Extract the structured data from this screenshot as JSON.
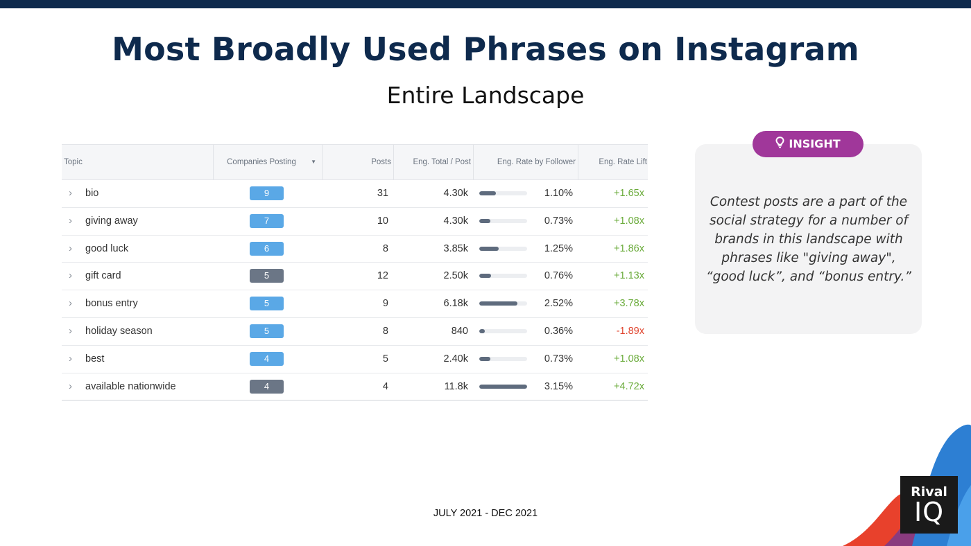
{
  "header": {
    "title": "Most Broadly Used Phrases on Instagram",
    "subtitle": "Entire Landscape"
  },
  "table": {
    "columns": {
      "topic": "Topic",
      "companies": "Companies Posting",
      "posts": "Posts",
      "eng_total": "Eng. Total / Post",
      "eng_rate": "Eng. Rate by Follower",
      "lift": "Eng. Rate Lift"
    },
    "rows": [
      {
        "topic": "bio",
        "companies": "9",
        "badge_color": "#5aa8e6",
        "posts": "31",
        "eng_total": "4.30k",
        "rate": "1.10%",
        "rate_fill": 0.35,
        "lift": "+1.65x",
        "lift_color": "#6aab3a"
      },
      {
        "topic": "giving away",
        "companies": "7",
        "badge_color": "#5aa8e6",
        "posts": "10",
        "eng_total": "4.30k",
        "rate": "0.73%",
        "rate_fill": 0.23,
        "lift": "+1.08x",
        "lift_color": "#6aab3a"
      },
      {
        "topic": "good luck",
        "companies": "6",
        "badge_color": "#5aa8e6",
        "posts": "8",
        "eng_total": "3.85k",
        "rate": "1.25%",
        "rate_fill": 0.4,
        "lift": "+1.86x",
        "lift_color": "#6aab3a"
      },
      {
        "topic": "gift card",
        "companies": "5",
        "badge_color": "#6b7686",
        "posts": "12",
        "eng_total": "2.50k",
        "rate": "0.76%",
        "rate_fill": 0.24,
        "lift": "+1.13x",
        "lift_color": "#6aab3a"
      },
      {
        "topic": "bonus entry",
        "companies": "5",
        "badge_color": "#5aa8e6",
        "posts": "9",
        "eng_total": "6.18k",
        "rate": "2.52%",
        "rate_fill": 0.8,
        "lift": "+3.78x",
        "lift_color": "#6aab3a"
      },
      {
        "topic": "holiday season",
        "companies": "5",
        "badge_color": "#5aa8e6",
        "posts": "8",
        "eng_total": "840",
        "rate": "0.36%",
        "rate_fill": 0.11,
        "lift": "-1.89x",
        "lift_color": "#e0442e"
      },
      {
        "topic": "best",
        "companies": "4",
        "badge_color": "#5aa8e6",
        "posts": "5",
        "eng_total": "2.40k",
        "rate": "0.73%",
        "rate_fill": 0.23,
        "lift": "+1.08x",
        "lift_color": "#6aab3a"
      },
      {
        "topic": "available nationwide",
        "companies": "4",
        "badge_color": "#6b7686",
        "posts": "4",
        "eng_total": "11.8k",
        "rate": "3.15%",
        "rate_fill": 1.0,
        "lift": "+4.72x",
        "lift_color": "#6aab3a"
      }
    ]
  },
  "insight": {
    "label": "INSIGHT",
    "text": "Contest posts are a part of the social strategy for a number of brands in this landscape with phrases like \"giving away\", “good luck”, and “bonus entry.”"
  },
  "footer": {
    "date_range": "JULY 2021 - DEC 2021"
  },
  "logo": {
    "line1": "Rival",
    "line2": "IQ"
  },
  "colors": {
    "navy": "#0e2a4d",
    "insight_pill": "#a0379a",
    "badge_blue": "#5aa8e6",
    "badge_gray": "#6b7686",
    "positive": "#6aab3a",
    "negative": "#e0442e"
  }
}
